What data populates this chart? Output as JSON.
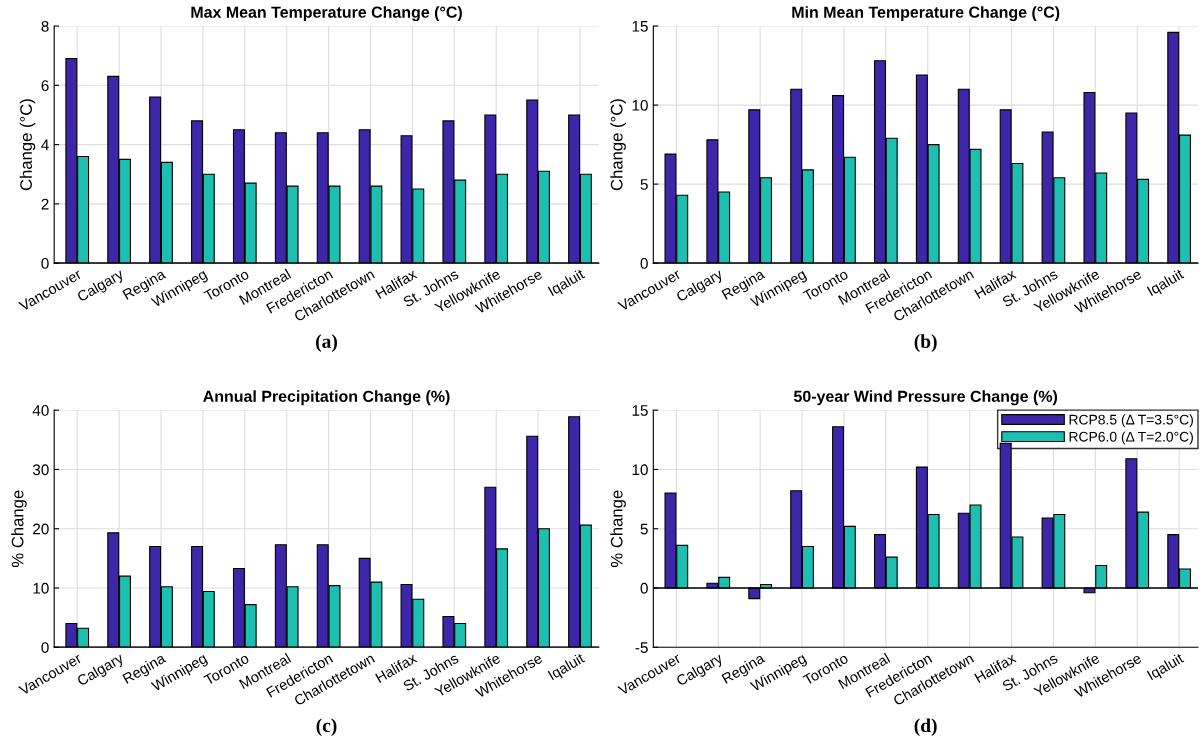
{
  "chart_data": [
    {
      "type": "bar",
      "title": "Max Mean Temperature Change (°C)",
      "ylabel": "Change (°C)",
      "categories": [
        "Vancouver",
        "Calgary",
        "Regina",
        "Winnipeg",
        "Toronto",
        "Montreal",
        "Fredericton",
        "Charlottetown",
        "Halifax",
        "St. Johns",
        "Yellowknife",
        "Whitehorse",
        "Iqaluit"
      ],
      "ylim": [
        0,
        8
      ],
      "yticks": [
        0,
        2,
        4,
        6,
        8
      ],
      "grid": true,
      "legend": false,
      "annotations": [
        "(a)"
      ],
      "series": [
        {
          "color": "#3e26a8",
          "values": [
            6.9,
            6.3,
            5.6,
            4.8,
            4.5,
            4.4,
            4.4,
            4.5,
            4.3,
            4.8,
            5.0,
            5.5,
            5.0
          ]
        },
        {
          "color": "#1cbfb0",
          "values": [
            3.6,
            3.5,
            3.4,
            3.0,
            2.7,
            2.6,
            2.6,
            2.6,
            2.5,
            2.8,
            3.0,
            3.1,
            3.0
          ]
        }
      ]
    },
    {
      "type": "bar",
      "title": "Min Mean Temperature Change (°C)",
      "ylabel": "Change (°C)",
      "categories": [
        "Vancouver",
        "Calgary",
        "Regina",
        "Winnipeg",
        "Toronto",
        "Montreal",
        "Fredericton",
        "Charlottetown",
        "Halifax",
        "St. Johns",
        "Yellowknife",
        "Whitehorse",
        "Iqaluit"
      ],
      "ylim": [
        0,
        15
      ],
      "yticks": [
        0,
        5,
        10,
        15
      ],
      "grid": true,
      "legend": false,
      "annotations": [
        "(b)"
      ],
      "series": [
        {
          "color": "#3e26a8",
          "values": [
            6.9,
            7.8,
            9.7,
            11.0,
            10.6,
            12.8,
            11.9,
            11.0,
            9.7,
            8.3,
            10.8,
            9.5,
            14.6
          ]
        },
        {
          "color": "#1cbfb0",
          "values": [
            4.3,
            4.5,
            5.4,
            5.9,
            6.7,
            7.9,
            7.5,
            7.2,
            6.3,
            5.4,
            5.7,
            5.3,
            8.1
          ]
        }
      ]
    },
    {
      "type": "bar",
      "title": "Annual Precipitation Change (%)",
      "ylabel": "% Change",
      "categories": [
        "Vancouver",
        "Calgary",
        "Regina",
        "Winnipeg",
        "Toronto",
        "Montreal",
        "Fredericton",
        "Charlottetown",
        "Halifax",
        "St. Johns",
        "Yellowknife",
        "Whitehorse",
        "Iqaluit"
      ],
      "ylim": [
        0,
        40
      ],
      "yticks": [
        0,
        10,
        20,
        30,
        40
      ],
      "grid": true,
      "legend": false,
      "annotations": [
        "(c)"
      ],
      "series": [
        {
          "color": "#3e26a8",
          "values": [
            4.0,
            19.3,
            17.0,
            17.0,
            13.3,
            17.3,
            17.3,
            15.0,
            10.6,
            5.2,
            27.0,
            35.6,
            38.9
          ]
        },
        {
          "color": "#1cbfb0",
          "values": [
            3.2,
            12.0,
            10.2,
            9.4,
            7.2,
            10.2,
            10.4,
            11.0,
            8.1,
            4.0,
            16.6,
            20.0,
            20.6
          ]
        }
      ]
    },
    {
      "type": "bar",
      "title": "50-year Wind Pressure Change (%)",
      "ylabel": "% Change",
      "categories": [
        "Vancouver",
        "Calgary",
        "Regina",
        "Winnipeg",
        "Toronto",
        "Montreal",
        "Fredericton",
        "Charlottetown",
        "Halifax",
        "St. Johns",
        "Yellowknife",
        "Whitehorse",
        "Iqaluit"
      ],
      "ylim": [
        -5,
        15
      ],
      "yticks": [
        -5,
        0,
        5,
        10,
        15
      ],
      "grid": true,
      "legend": "top right",
      "annotations": [
        "(d)"
      ],
      "series": [
        {
          "name": "RCP8.5 (Δ T=3.5°C)",
          "color": "#3e26a8",
          "values": [
            8.0,
            0.4,
            -0.9,
            8.2,
            13.6,
            4.5,
            10.2,
            6.3,
            12.2,
            5.9,
            -0.4,
            10.9,
            4.5
          ]
        },
        {
          "name": "RCP6.0 (Δ T=2.0°C)",
          "color": "#1cbfb0",
          "values": [
            3.6,
            0.9,
            0.3,
            3.5,
            5.2,
            2.6,
            6.2,
            7.0,
            4.3,
            6.2,
            1.9,
            6.4,
            1.6
          ]
        }
      ]
    }
  ]
}
